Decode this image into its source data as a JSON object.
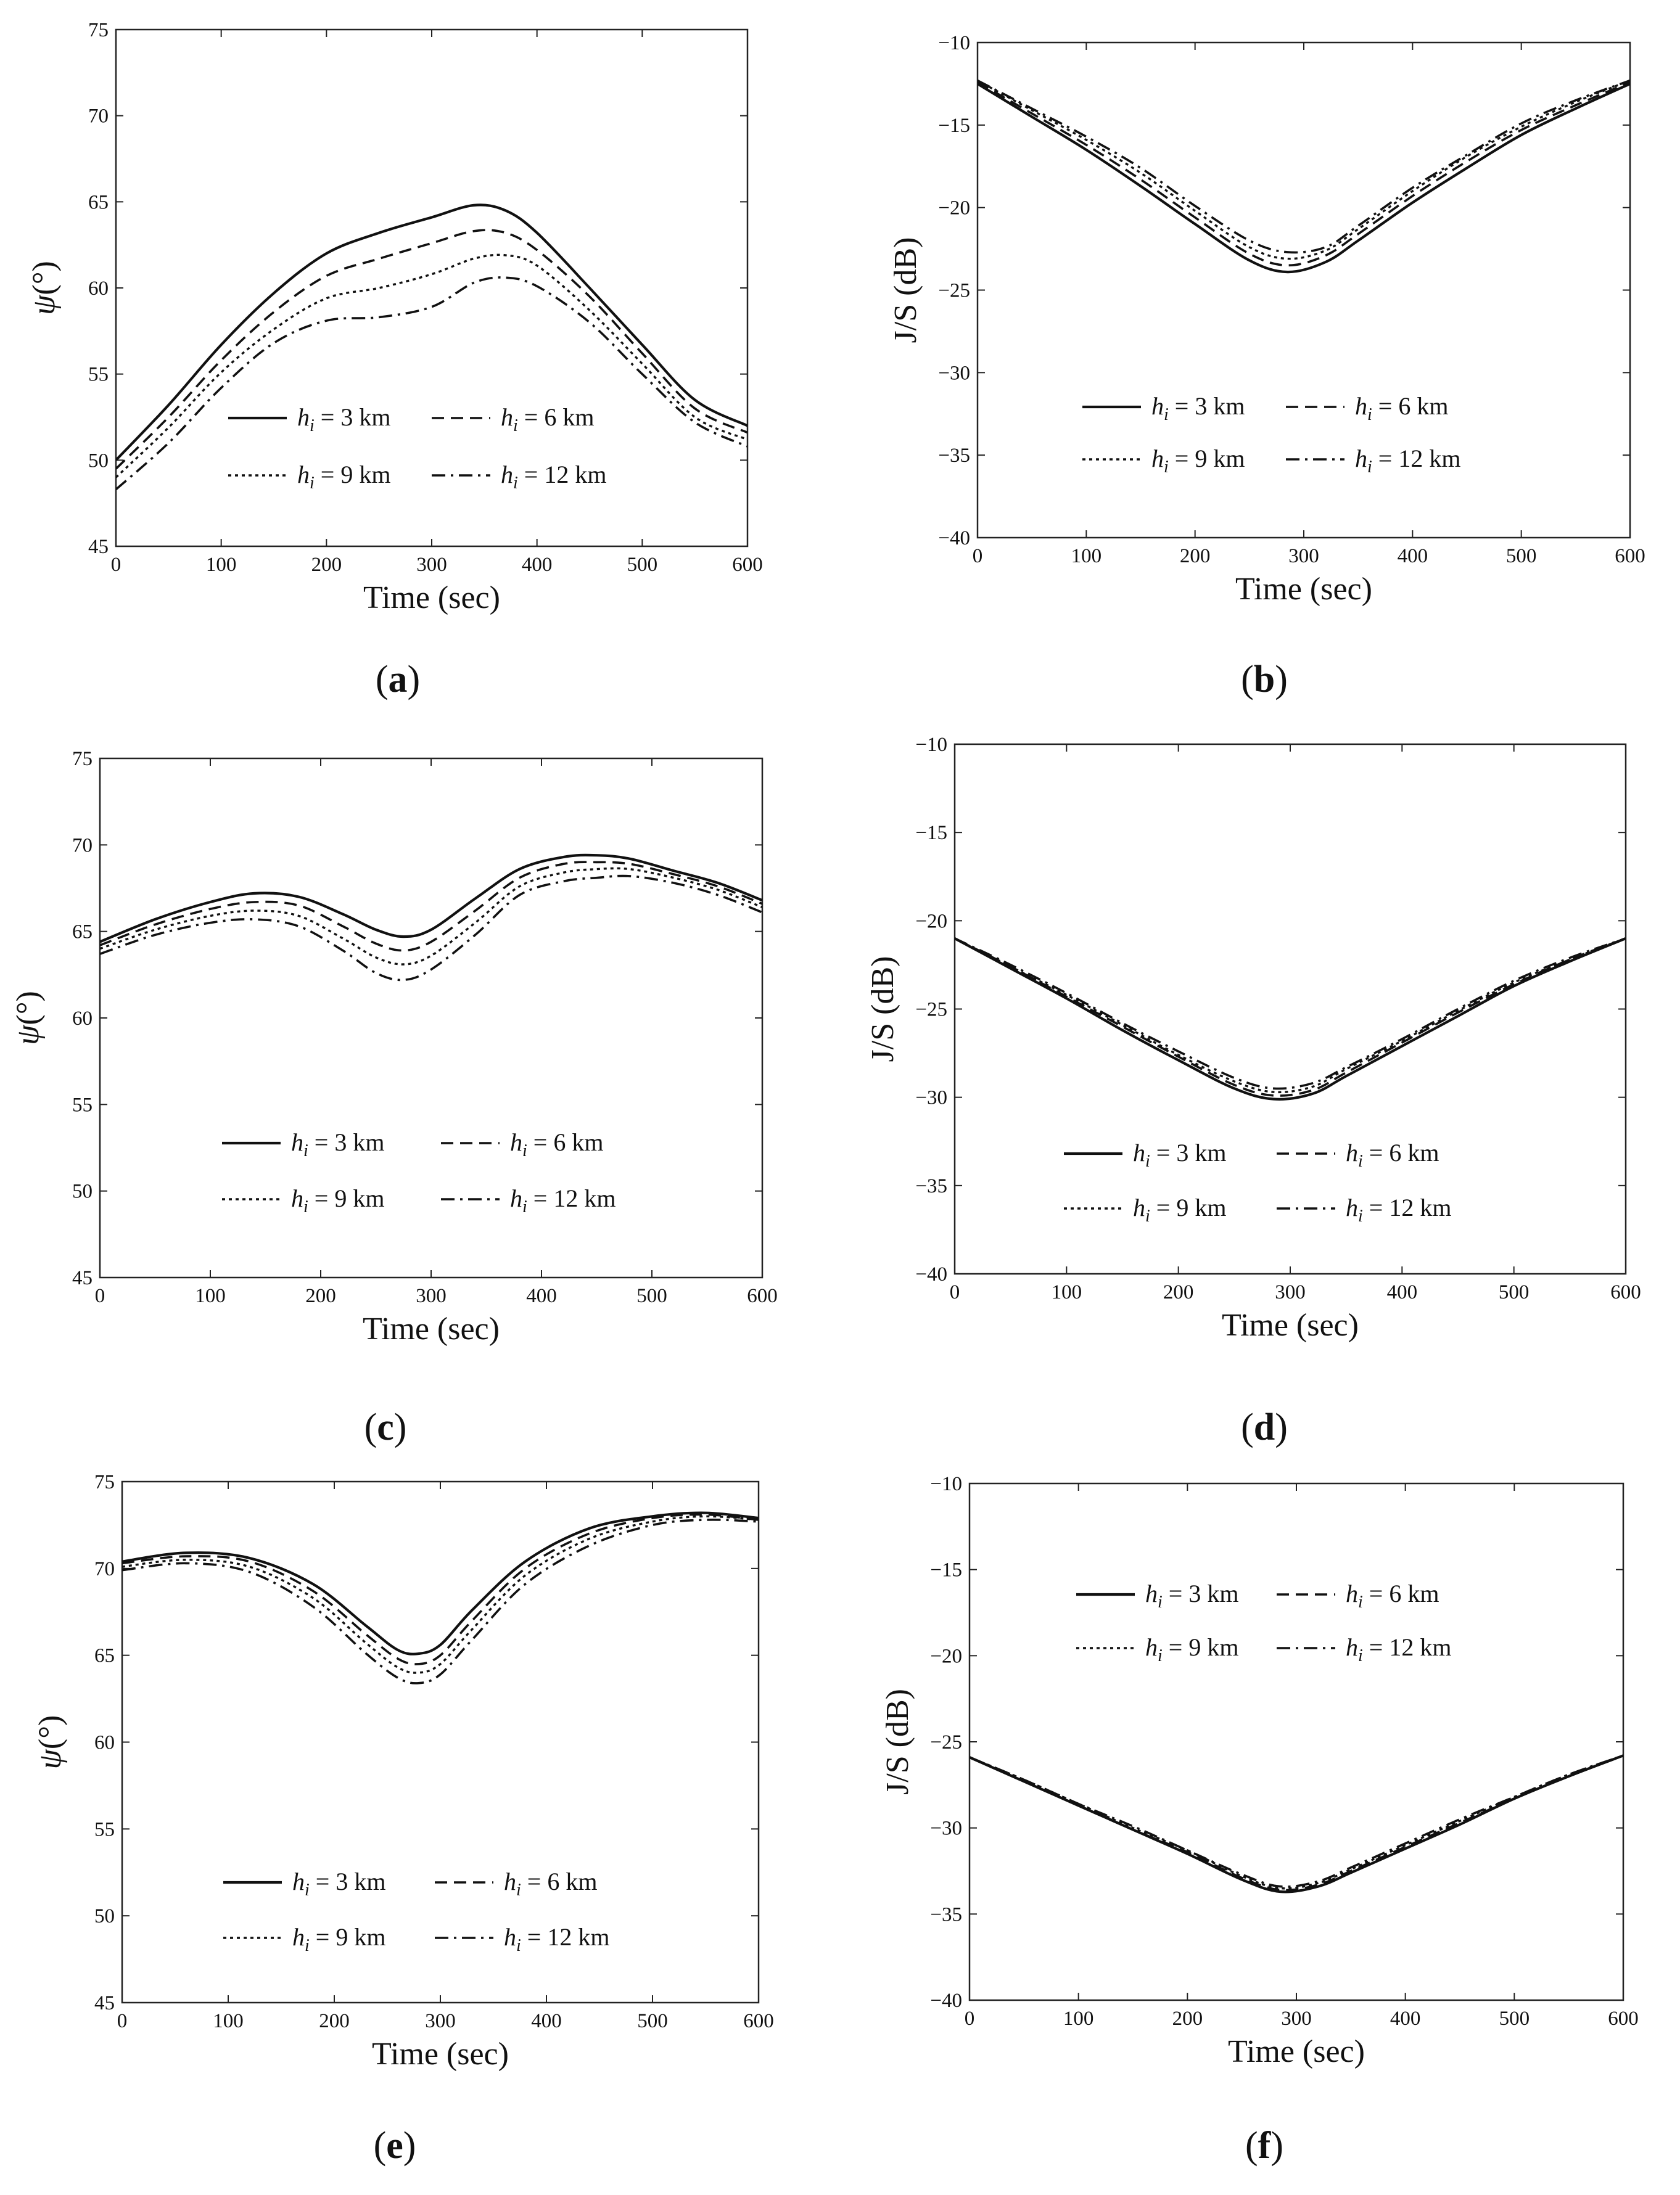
{
  "chart_data": [
    {
      "id": "a",
      "type": "line",
      "caption": "a",
      "xlabel": "Time (sec)",
      "ylabel_symbol": "ψ",
      "ylabel_unit": "(°)",
      "xlim": [
        0,
        600
      ],
      "ylim": [
        45,
        75
      ],
      "xticks": [
        "0",
        "100",
        "200",
        "300",
        "400",
        "500",
        "600"
      ],
      "yticks": [
        "45",
        "50",
        "55",
        "60",
        "65",
        "70",
        "75"
      ],
      "legend": {
        "placement": "lower-center",
        "entries": [
          {
            "sym": "h",
            "sub": "i",
            "text": " = 3 km"
          },
          {
            "sym": "h",
            "sub": "i",
            "text": " = 6 km"
          },
          {
            "sym": "h",
            "sub": "i",
            "text": " = 9 km"
          },
          {
            "sym": "h",
            "sub": "i",
            "text": " = 12 km"
          }
        ]
      },
      "x": [
        0,
        50,
        100,
        150,
        200,
        250,
        300,
        340,
        370,
        400,
        450,
        500,
        550,
        600
      ],
      "series": [
        {
          "name": "hi = 3 km",
          "style": "solid",
          "values": [
            50,
            53.2,
            56.7,
            59.7,
            62.0,
            63.2,
            64.1,
            64.8,
            64.5,
            63.2,
            60.0,
            56.7,
            53.5,
            52.0
          ]
        },
        {
          "name": "hi = 6 km",
          "style": "dash",
          "values": [
            49.5,
            52.5,
            55.8,
            58.6,
            60.7,
            61.7,
            62.6,
            63.3,
            63.2,
            62.2,
            59.5,
            56.2,
            53.0,
            51.6
          ]
        },
        {
          "name": "hi = 9 km",
          "style": "dot",
          "values": [
            49.0,
            51.9,
            55.1,
            57.6,
            59.4,
            60.0,
            60.8,
            61.7,
            61.9,
            61.3,
            58.7,
            55.6,
            52.5,
            51.2
          ]
        },
        {
          "name": "hi = 12 km",
          "style": "dashdot",
          "values": [
            48.3,
            51.0,
            54.2,
            56.8,
            58.1,
            58.3,
            58.9,
            60.3,
            60.6,
            60.1,
            58.0,
            55.0,
            52.2,
            50.8
          ]
        }
      ]
    },
    {
      "id": "b",
      "type": "line",
      "caption": "b",
      "xlabel": "Time (sec)",
      "ylabel": "J/S (dB)",
      "xlim": [
        0,
        600
      ],
      "ylim": [
        -40,
        -10
      ],
      "xticks": [
        "0",
        "100",
        "200",
        "300",
        "400",
        "500",
        "600"
      ],
      "yticks": [
        "-40",
        "-35",
        "-30",
        "-25",
        "-20",
        "-15",
        "-10"
      ],
      "legend": {
        "placement": "lower-center",
        "entries": [
          {
            "sym": "h",
            "sub": "i",
            "text": " = 3 km"
          },
          {
            "sym": "h",
            "sub": "i",
            "text": " = 6 km"
          },
          {
            "sym": "h",
            "sub": "i",
            "text": " = 9 km"
          },
          {
            "sym": "h",
            "sub": "i",
            "text": " = 12 km"
          }
        ]
      },
      "x": [
        0,
        50,
        100,
        150,
        200,
        250,
        285,
        320,
        350,
        400,
        450,
        500,
        550,
        600
      ],
      "series": [
        {
          "name": "hi = 3 km",
          "style": "solid",
          "values": [
            -12.5,
            -14.5,
            -16.5,
            -18.7,
            -21.0,
            -23.2,
            -23.9,
            -23.3,
            -22.0,
            -19.7,
            -17.6,
            -15.6,
            -14.0,
            -12.5
          ]
        },
        {
          "name": "hi = 6 km",
          "style": "dash",
          "values": [
            -12.4,
            -14.3,
            -16.2,
            -18.3,
            -20.6,
            -22.8,
            -23.5,
            -22.9,
            -21.6,
            -19.3,
            -17.2,
            -15.3,
            -13.8,
            -12.4
          ]
        },
        {
          "name": "hi = 9 km",
          "style": "dot",
          "values": [
            -12.3,
            -14.1,
            -15.9,
            -17.9,
            -20.2,
            -22.4,
            -23.1,
            -22.6,
            -21.3,
            -19.0,
            -16.9,
            -15.1,
            -13.6,
            -12.3
          ]
        },
        {
          "name": "hi = 12 km",
          "style": "dashdot",
          "values": [
            -12.3,
            -14.0,
            -15.7,
            -17.6,
            -19.9,
            -22.0,
            -22.7,
            -22.4,
            -21.1,
            -18.8,
            -16.8,
            -14.9,
            -13.5,
            -12.3
          ]
        }
      ]
    },
    {
      "id": "c",
      "type": "line",
      "caption": "c",
      "xlabel": "Time (sec)",
      "ylabel_symbol": "ψ",
      "ylabel_unit": "(°)",
      "xlim": [
        0,
        600
      ],
      "ylim": [
        45,
        75
      ],
      "xticks": [
        "0",
        "100",
        "200",
        "300",
        "400",
        "500",
        "600"
      ],
      "yticks": [
        "45",
        "50",
        "55",
        "60",
        "65",
        "70",
        "75"
      ],
      "legend": {
        "placement": "lower-center",
        "entries": [
          {
            "sym": "h",
            "sub": "i",
            "text": " = 3 km"
          },
          {
            "sym": "h",
            "sub": "i",
            "text": " = 6 km"
          },
          {
            "sym": "h",
            "sub": "i",
            "text": " = 9 km"
          },
          {
            "sym": "h",
            "sub": "i",
            "text": " = 12 km"
          }
        ]
      },
      "x": [
        0,
        50,
        100,
        140,
        180,
        220,
        250,
        275,
        300,
        340,
        380,
        420,
        450,
        480,
        520,
        560,
        600
      ],
      "series": [
        {
          "name": "hi = 3 km",
          "style": "solid",
          "values": [
            64.4,
            65.7,
            66.7,
            67.2,
            67.0,
            66.0,
            65.1,
            64.7,
            65.1,
            66.9,
            68.6,
            69.3,
            69.4,
            69.2,
            68.5,
            67.8,
            66.8
          ]
        },
        {
          "name": "hi = 6 km",
          "style": "dash",
          "values": [
            64.2,
            65.4,
            66.3,
            66.7,
            66.5,
            65.3,
            64.3,
            63.9,
            64.4,
            66.2,
            68.1,
            68.9,
            69.0,
            68.9,
            68.3,
            67.6,
            66.6
          ]
        },
        {
          "name": "hi = 9 km",
          "style": "dot",
          "values": [
            64.0,
            65.1,
            65.9,
            66.2,
            65.9,
            64.6,
            63.5,
            63.1,
            63.6,
            65.5,
            67.6,
            68.4,
            68.6,
            68.6,
            68.1,
            67.4,
            66.4
          ]
        },
        {
          "name": "hi = 12 km",
          "style": "dashdot",
          "values": [
            63.7,
            64.8,
            65.5,
            65.7,
            65.3,
            63.9,
            62.6,
            62.2,
            62.8,
            64.8,
            67.1,
            67.9,
            68.1,
            68.2,
            67.8,
            67.1,
            66.1
          ]
        }
      ]
    },
    {
      "id": "d",
      "type": "line",
      "caption": "d",
      "xlabel": "Time (sec)",
      "ylabel": "J/S (dB)",
      "xlim": [
        0,
        600
      ],
      "ylim": [
        -40,
        -10
      ],
      "xticks": [
        "0",
        "100",
        "200",
        "300",
        "400",
        "500",
        "600"
      ],
      "yticks": [
        "-40",
        "-35",
        "-30",
        "-25",
        "-20",
        "-15",
        "-10"
      ],
      "legend": {
        "placement": "lower-center",
        "entries": [
          {
            "sym": "h",
            "sub": "i",
            "text": " = 3 km"
          },
          {
            "sym": "h",
            "sub": "i",
            "text": " = 6 km"
          },
          {
            "sym": "h",
            "sub": "i",
            "text": " = 9 km"
          },
          {
            "sym": "h",
            "sub": "i",
            "text": " = 12 km"
          }
        ]
      },
      "x": [
        0,
        50,
        100,
        150,
        200,
        250,
        285,
        320,
        350,
        400,
        450,
        500,
        550,
        600
      ],
      "series": [
        {
          "name": "hi = 3 km",
          "style": "solid",
          "values": [
            -21.0,
            -22.7,
            -24.4,
            -26.2,
            -27.9,
            -29.5,
            -30.1,
            -29.8,
            -28.8,
            -27.1,
            -25.4,
            -23.7,
            -22.3,
            -21.0
          ]
        },
        {
          "name": "hi = 6 km",
          "style": "dash",
          "values": [
            -21.0,
            -22.6,
            -24.3,
            -26.0,
            -27.7,
            -29.3,
            -29.9,
            -29.6,
            -28.6,
            -26.9,
            -25.2,
            -23.6,
            -22.2,
            -21.0
          ]
        },
        {
          "name": "hi = 9 km",
          "style": "dot",
          "values": [
            -21.0,
            -22.6,
            -24.2,
            -25.9,
            -27.6,
            -29.1,
            -29.7,
            -29.4,
            -28.4,
            -26.8,
            -25.1,
            -23.5,
            -22.2,
            -21.0
          ]
        },
        {
          "name": "hi = 12 km",
          "style": "dashdot",
          "values": [
            -21.0,
            -22.5,
            -24.1,
            -25.8,
            -27.4,
            -28.9,
            -29.5,
            -29.2,
            -28.3,
            -26.7,
            -25.0,
            -23.4,
            -22.1,
            -21.0
          ]
        }
      ]
    },
    {
      "id": "e",
      "type": "line",
      "caption": "e",
      "xlabel": "Time (sec)",
      "ylabel_symbol": "ψ",
      "ylabel_unit": "(°)",
      "xlim": [
        0,
        600
      ],
      "ylim": [
        45,
        75
      ],
      "xticks": [
        "0",
        "100",
        "200",
        "300",
        "400",
        "500",
        "600"
      ],
      "yticks": [
        "45",
        "50",
        "55",
        "60",
        "65",
        "70",
        "75"
      ],
      "legend": {
        "placement": "lower-center",
        "entries": [
          {
            "sym": "h",
            "sub": "i",
            "text": " = 3 km"
          },
          {
            "sym": "h",
            "sub": "i",
            "text": " = 6 km"
          },
          {
            "sym": "h",
            "sub": "i",
            "text": " = 9 km"
          },
          {
            "sym": "h",
            "sub": "i",
            "text": " = 12 km"
          }
        ]
      },
      "x": [
        0,
        60,
        120,
        180,
        230,
        260,
        280,
        300,
        330,
        380,
        440,
        500,
        550,
        600
      ],
      "series": [
        {
          "name": "hi = 3 km",
          "style": "solid",
          "values": [
            70.4,
            70.9,
            70.6,
            69.1,
            66.7,
            65.3,
            65.1,
            65.6,
            67.6,
            70.4,
            72.3,
            73.0,
            73.2,
            72.9
          ]
        },
        {
          "name": "hi = 6 km",
          "style": "dash",
          "values": [
            70.3,
            70.7,
            70.4,
            68.7,
            66.2,
            64.8,
            64.5,
            65.0,
            67.0,
            70.0,
            72.0,
            72.9,
            73.1,
            72.8
          ]
        },
        {
          "name": "hi = 9 km",
          "style": "dot",
          "values": [
            70.1,
            70.5,
            70.1,
            68.3,
            65.7,
            64.3,
            64.0,
            64.5,
            66.5,
            69.6,
            71.7,
            72.7,
            73.0,
            72.8
          ]
        },
        {
          "name": "hi = 12 km",
          "style": "dashdot",
          "values": [
            69.9,
            70.3,
            69.8,
            67.8,
            65.1,
            63.7,
            63.4,
            63.9,
            65.9,
            69.1,
            71.3,
            72.5,
            72.8,
            72.7
          ]
        }
      ]
    },
    {
      "id": "f",
      "type": "line",
      "caption": "f",
      "xlabel": "Time (sec)",
      "ylabel": "J/S (dB)",
      "xlim": [
        0,
        600
      ],
      "ylim": [
        -40,
        -10
      ],
      "xticks": [
        "0",
        "100",
        "200",
        "300",
        "400",
        "500",
        "600"
      ],
      "yticks": [
        "-40",
        "-35",
        "-30",
        "-25",
        "-20",
        "-15",
        "-10"
      ],
      "legend": {
        "placement": "upper-center",
        "entries": [
          {
            "sym": "h",
            "sub": "i",
            "text": " = 3 km"
          },
          {
            "sym": "h",
            "sub": "i",
            "text": " = 6 km"
          },
          {
            "sym": "h",
            "sub": "i",
            "text": " = 9 km"
          },
          {
            "sym": "h",
            "sub": "i",
            "text": " = 12 km"
          }
        ]
      },
      "x": [
        0,
        50,
        100,
        150,
        200,
        250,
        285,
        320,
        350,
        400,
        450,
        500,
        550,
        600
      ],
      "series": [
        {
          "name": "hi = 3 km",
          "style": "solid",
          "values": [
            -25.9,
            -27.3,
            -28.7,
            -30.1,
            -31.5,
            -33.0,
            -33.7,
            -33.4,
            -32.6,
            -31.2,
            -29.8,
            -28.3,
            -27.0,
            -25.8
          ]
        },
        {
          "name": "hi = 6 km",
          "style": "dash",
          "values": [
            -25.9,
            -27.3,
            -28.7,
            -30.1,
            -31.4,
            -32.9,
            -33.6,
            -33.3,
            -32.5,
            -31.1,
            -29.7,
            -28.3,
            -27.0,
            -25.8
          ]
        },
        {
          "name": "hi = 9 km",
          "style": "dot",
          "values": [
            -25.9,
            -27.2,
            -28.6,
            -30.0,
            -31.3,
            -32.8,
            -33.5,
            -33.2,
            -32.4,
            -31.0,
            -29.6,
            -28.2,
            -26.9,
            -25.8
          ]
        },
        {
          "name": "hi = 12 km",
          "style": "dashdot",
          "values": [
            -25.9,
            -27.2,
            -28.6,
            -29.9,
            -31.3,
            -32.7,
            -33.4,
            -33.1,
            -32.3,
            -30.9,
            -29.5,
            -28.2,
            -26.9,
            -25.8
          ]
        }
      ]
    }
  ]
}
